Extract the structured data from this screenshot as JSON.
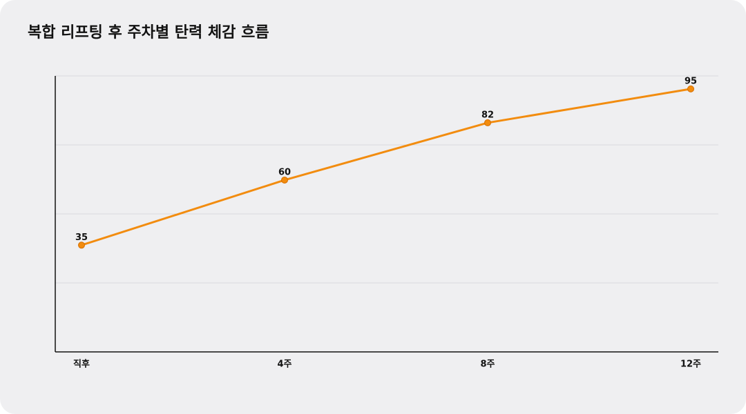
{
  "chart_data": {
    "type": "line",
    "title": "복합 리프팅 후 주차별 탄력 체감 흐름",
    "categories": [
      "직후",
      "4주",
      "8주",
      "12주"
    ],
    "series": [
      {
        "name": "탄력 체감",
        "color": "#f28c0f",
        "values": [
          35,
          60,
          82,
          95
        ]
      }
    ],
    "ylim": [
      -6,
      100
    ],
    "yticks": [
      20.5,
      47,
      73.5,
      100
    ],
    "grid": true
  }
}
